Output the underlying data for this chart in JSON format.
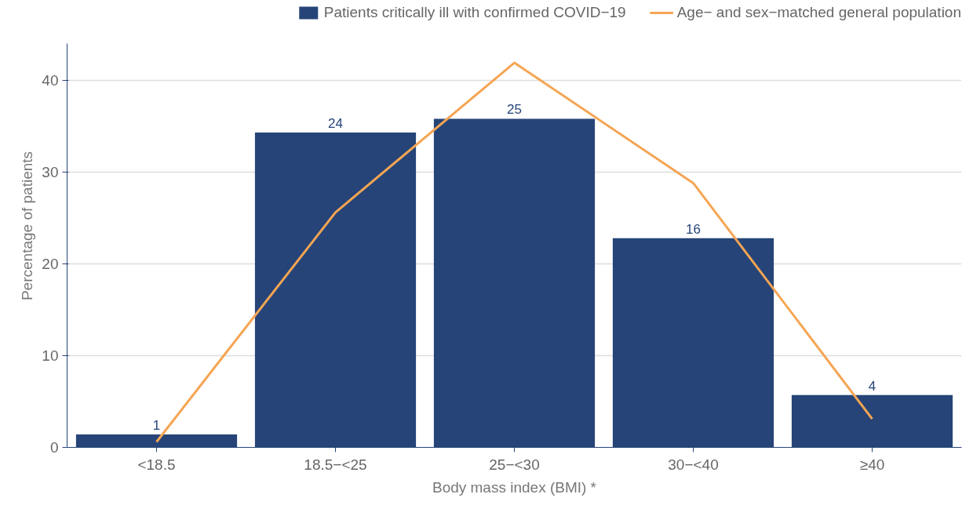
{
  "chart_data": {
    "type": "bar",
    "xlabel": "Body mass index (BMI) *",
    "ylabel": "Percentage of patients",
    "categories": [
      "<18.5",
      "18.5−<25",
      "25−<30",
      "30−<40",
      "≥40"
    ],
    "series": [
      {
        "name": "Patients critically ill with confirmed COVID−19",
        "type": "bar",
        "color": "#264478",
        "values": [
          1.4,
          34.3,
          35.8,
          22.8,
          5.7
        ]
      },
      {
        "name": "Age− and sex−matched general population",
        "type": "line",
        "color": "#f5a553",
        "values": [
          0.6,
          25.6,
          41.9,
          28.8,
          3.1
        ]
      }
    ],
    "annotations": [
      {
        "text": "1",
        "x": "<18.5",
        "y": 1.4
      },
      {
        "text": "24",
        "x": "18.5−<25",
        "y": 34.3
      },
      {
        "text": "25",
        "x": "25−<30",
        "y": 35.8
      },
      {
        "text": "16",
        "x": "30−<40",
        "y": 22.8
      },
      {
        "text": "4",
        "x": "≥40",
        "y": 5.7
      }
    ],
    "ylim": [
      0,
      44
    ],
    "yticks": [
      0,
      10,
      20,
      30,
      40
    ],
    "grid": "y",
    "legend": "top"
  }
}
